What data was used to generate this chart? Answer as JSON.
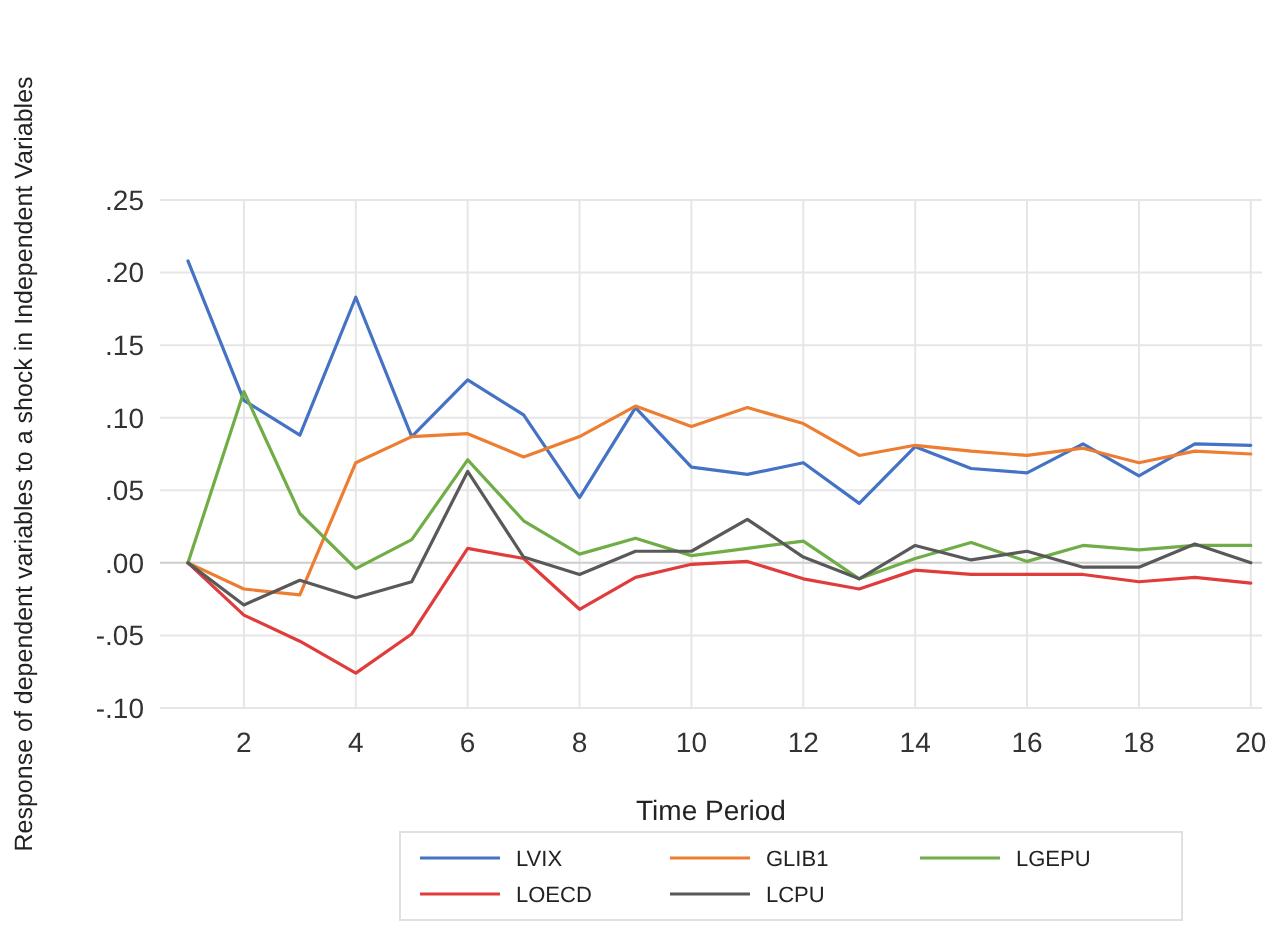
{
  "chart_data": {
    "type": "line",
    "xlabel": "Time Period",
    "ylabel": "Response of dependent variables to a shock in Independent Variables",
    "x": [
      1,
      2,
      3,
      4,
      5,
      6,
      7,
      8,
      9,
      10,
      11,
      12,
      13,
      14,
      15,
      16,
      17,
      18,
      19,
      20
    ],
    "xlim": [
      0.5,
      20.2
    ],
    "xticks": [
      2,
      4,
      6,
      8,
      10,
      12,
      14,
      16,
      18,
      20
    ],
    "ylim": [
      -0.1,
      0.25
    ],
    "yticks": [
      {
        "value": -0.1,
        "label": "-.10"
      },
      {
        "value": -0.05,
        "label": "-.05"
      },
      {
        "value": 0,
        "label": ".00"
      },
      {
        "value": 0.05,
        "label": ".05"
      },
      {
        "value": 0.1,
        "label": ".10"
      },
      {
        "value": 0.15,
        "label": ".15"
      },
      {
        "value": 0.2,
        "label": ".20"
      },
      {
        "value": 0.25,
        "label": ".25"
      }
    ],
    "grid": true,
    "legend": "bottom",
    "marker": "none",
    "line_style": "solid",
    "series": [
      {
        "name": "LVIX",
        "color": "#4472c4",
        "values": [
          0.208,
          0.112,
          0.088,
          0.183,
          0.087,
          0.126,
          0.102,
          0.045,
          0.107,
          0.066,
          0.061,
          0.069,
          0.041,
          0.08,
          0.065,
          0.062,
          0.082,
          0.06,
          0.082,
          0.081
        ]
      },
      {
        "name": "GLIB1",
        "color": "#ed7d31",
        "values": [
          0,
          -0.018,
          -0.022,
          0.069,
          0.087,
          0.089,
          0.073,
          0.087,
          0.108,
          0.094,
          0.107,
          0.096,
          0.074,
          0.081,
          0.077,
          0.074,
          0.079,
          0.069,
          0.077,
          0.075
        ]
      },
      {
        "name": "LGEPU",
        "color": "#70ad47",
        "values": [
          0,
          0.118,
          0.034,
          -0.004,
          0.016,
          0.071,
          0.029,
          0.006,
          0.017,
          0.005,
          0.01,
          0.015,
          -0.011,
          0.003,
          0.014,
          0.001,
          0.012,
          0.009,
          0.012,
          0.012
        ]
      },
      {
        "name": "LOECD",
        "color": "#e03c3c",
        "values": [
          0,
          -0.036,
          -0.054,
          -0.076,
          -0.049,
          0.01,
          0.003,
          -0.032,
          -0.01,
          -0.001,
          0.001,
          -0.011,
          -0.018,
          -0.005,
          -0.008,
          -0.008,
          -0.008,
          -0.013,
          -0.01,
          -0.014
        ]
      },
      {
        "name": "LCPU",
        "color": "#595959",
        "values": [
          0,
          -0.029,
          -0.012,
          -0.024,
          -0.013,
          0.063,
          0.004,
          -0.008,
          0.008,
          0.008,
          0.03,
          0.004,
          -0.011,
          0.012,
          0.002,
          0.008,
          -0.003,
          -0.003,
          0.013,
          0
        ]
      }
    ]
  }
}
